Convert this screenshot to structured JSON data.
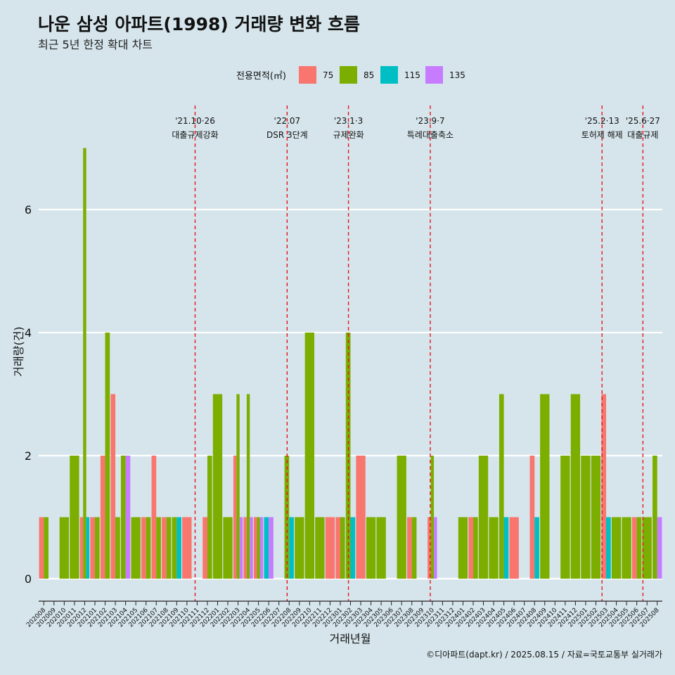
{
  "chart_data": {
    "type": "bar",
    "title": "나운 삼성 아파트(1998) 거래량 변화 흐름",
    "subtitle": "최근 5년 한정 확대 차트",
    "xlabel": "거래년월",
    "ylabel": "거래량(건)",
    "caption": "©디아파트(dapt.kr) / 2025.08.15 / 자료=국토교통부 실거래가",
    "legend": {
      "title": "전용면적(㎡)",
      "position": "top",
      "items": [
        {
          "name": "75",
          "color": "#f8766d"
        },
        {
          "name": "85",
          "color": "#7cae00"
        },
        {
          "name": "115",
          "color": "#00bfc4"
        },
        {
          "name": "135",
          "color": "#c77cff"
        }
      ]
    },
    "ylim": [
      0,
      7
    ],
    "yticks": [
      0,
      2,
      4,
      6
    ],
    "grid": true,
    "categories": [
      "202008",
      "202009",
      "202010",
      "202011",
      "202012",
      "202101",
      "202102",
      "202103",
      "202104",
      "202105",
      "202106",
      "202107",
      "202108",
      "202109",
      "202110",
      "202111",
      "202112",
      "202201",
      "202202",
      "202203",
      "202204",
      "202205",
      "202206",
      "202207",
      "202208",
      "202209",
      "202210",
      "202211",
      "202212",
      "202301",
      "202302",
      "202303",
      "202304",
      "202305",
      "202306",
      "202307",
      "202308",
      "202309",
      "202310",
      "202311",
      "202312",
      "202401",
      "202402",
      "202403",
      "202404",
      "202405",
      "202406",
      "202407",
      "202408",
      "202409",
      "202410",
      "202411",
      "202412",
      "202501",
      "202502",
      "202503",
      "202504",
      "202505",
      "202506",
      "202507",
      "202508"
    ],
    "series": [
      {
        "name": "75",
        "values": [
          1,
          0,
          0,
          0,
          1,
          1,
          2,
          3,
          0,
          0,
          1,
          2,
          1,
          0,
          1,
          0,
          1,
          0,
          0,
          2,
          1,
          1,
          0,
          0,
          0,
          0,
          0,
          0,
          1,
          1,
          0,
          2,
          0,
          0,
          0,
          0,
          1,
          0,
          1,
          0,
          0,
          0,
          1,
          0,
          0,
          0,
          1,
          0,
          2,
          0,
          0,
          0,
          0,
          0,
          0,
          3,
          0,
          0,
          1,
          0,
          0
        ]
      },
      {
        "name": "85",
        "values": [
          1,
          0,
          1,
          2,
          7,
          1,
          4,
          1,
          2,
          1,
          1,
          1,
          1,
          1,
          0,
          0,
          2,
          3,
          1,
          3,
          3,
          1,
          0,
          0,
          2,
          1,
          4,
          1,
          0,
          1,
          4,
          0,
          1,
          1,
          0,
          2,
          1,
          0,
          2,
          0,
          0,
          1,
          1,
          2,
          1,
          3,
          0,
          0,
          0,
          3,
          0,
          2,
          3,
          2,
          2,
          0,
          1,
          1,
          1,
          1,
          2
        ]
      },
      {
        "name": "115",
        "values": [
          0,
          0,
          0,
          0,
          1,
          0,
          0,
          0,
          0,
          0,
          0,
          0,
          0,
          1,
          0,
          0,
          0,
          0,
          0,
          0,
          0,
          0,
          1,
          0,
          1,
          0,
          0,
          0,
          0,
          0,
          1,
          0,
          0,
          0,
          0,
          0,
          0,
          0,
          0,
          0,
          0,
          0,
          0,
          0,
          0,
          1,
          0,
          0,
          1,
          0,
          0,
          0,
          0,
          0,
          0,
          1,
          0,
          0,
          0,
          0,
          0
        ]
      },
      {
        "name": "135",
        "values": [
          0,
          0,
          0,
          0,
          0,
          0,
          0,
          0,
          2,
          0,
          0,
          0,
          0,
          0,
          0,
          0,
          0,
          0,
          0,
          1,
          1,
          1,
          1,
          0,
          0,
          0,
          0,
          0,
          0,
          0,
          0,
          0,
          0,
          0,
          0,
          0,
          0,
          0,
          1,
          0,
          0,
          0,
          0,
          0,
          0,
          0,
          0,
          0,
          0,
          0,
          0,
          0,
          0,
          0,
          0,
          0,
          0,
          0,
          0,
          0,
          1
        ]
      }
    ],
    "events": [
      {
        "date": "'21.10·26",
        "text": "대출규제강화",
        "index": 14.8
      },
      {
        "date": "'22.07",
        "text": "DSR 3단계",
        "index": 23.8
      },
      {
        "date": "'23.1·3",
        "text": "규제완화",
        "index": 29.8
      },
      {
        "date": "'23.9·7",
        "text": "특례대출축소",
        "index": 37.8
      },
      {
        "date": "'25.2·13",
        "text": "토허제 해제",
        "index": 54.6
      },
      {
        "date": "'25.6·27",
        "text": "대출규제",
        "index": 58.6
      }
    ]
  }
}
